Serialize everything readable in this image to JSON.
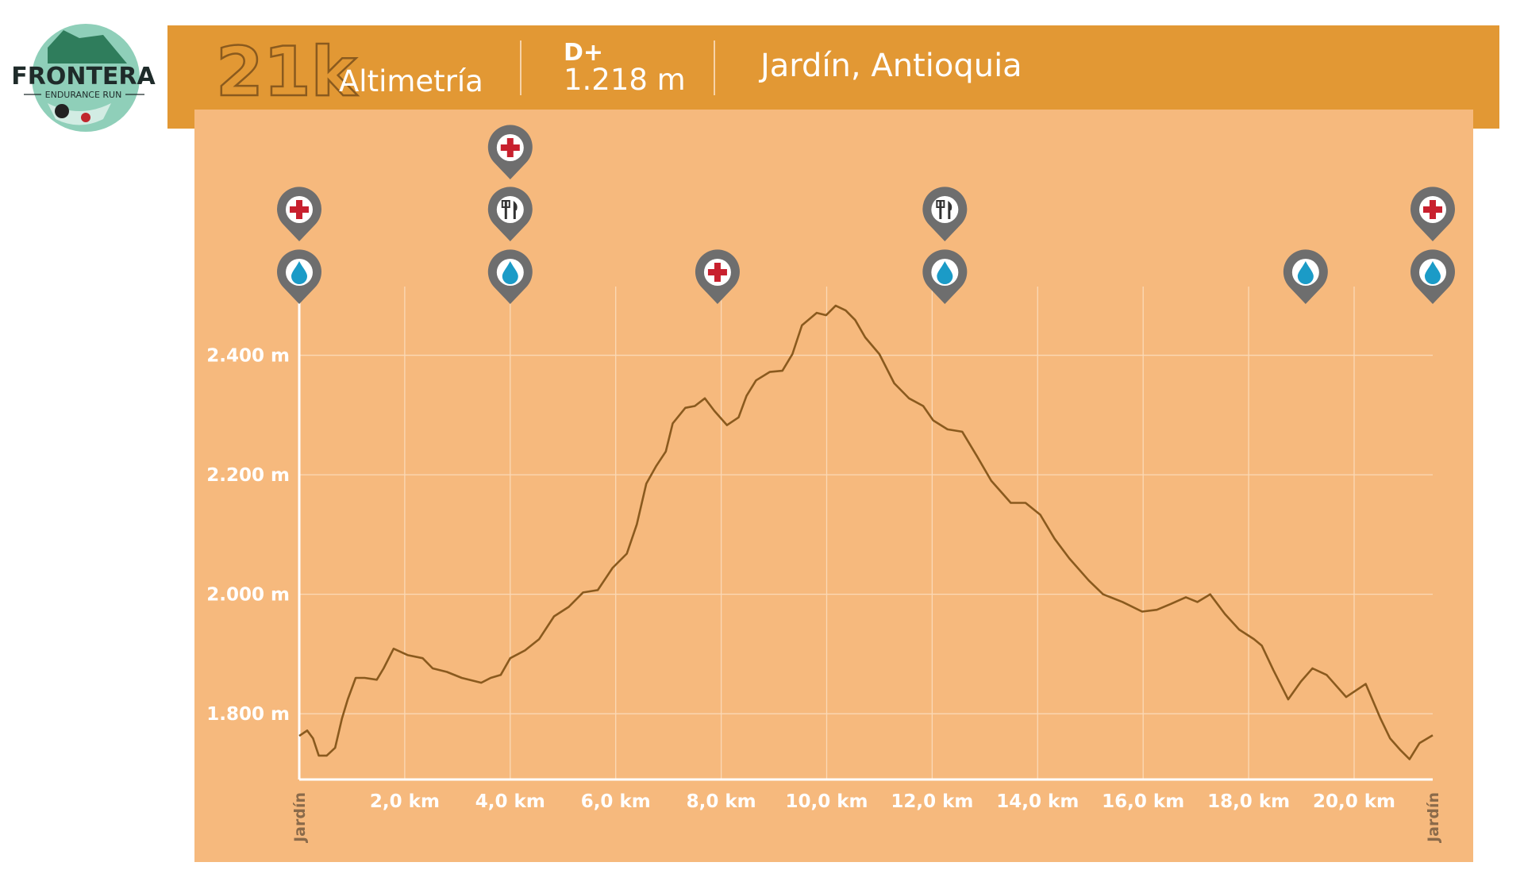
{
  "logo": {
    "title": "FRONTERA",
    "subtitle": "ENDURANCE RUN"
  },
  "header": {
    "distance": "21k",
    "label": "Altimetría",
    "gain_label": "D+",
    "gain_value": "1.218 m",
    "location": "Jardín, Antioquia"
  },
  "chart_data": {
    "type": "line",
    "x": [
      0,
      0.15,
      0.26,
      0.37,
      0.52,
      0.68,
      0.81,
      0.92,
      1.07,
      1.24,
      1.47,
      1.6,
      1.79,
      2.06,
      2.34,
      2.53,
      2.8,
      3.08,
      3.45,
      3.63,
      3.82,
      4.0,
      4.28,
      4.55,
      4.83,
      5.11,
      5.38,
      5.66,
      5.94,
      6.21,
      6.4,
      6.58,
      6.77,
      6.95,
      7.08,
      7.32,
      7.5,
      7.69,
      7.87,
      8.11,
      8.33,
      8.48,
      8.66,
      8.92,
      9.16,
      9.35,
      9.53,
      9.81,
      9.99,
      10.17,
      10.36,
      10.54,
      10.73,
      11.0,
      11.28,
      11.56,
      11.83,
      12.02,
      12.29,
      12.57,
      12.85,
      13.12,
      13.49,
      13.77,
      14.05,
      14.32,
      14.6,
      14.97,
      15.24,
      15.61,
      15.98,
      16.26,
      16.53,
      16.81,
      17.03,
      17.27,
      17.55,
      17.82,
      18.1,
      18.25,
      18.47,
      18.75,
      18.99,
      19.21,
      19.48,
      19.85,
      20.22,
      20.5,
      20.68,
      20.87,
      21.05,
      21.24,
      21.49
    ],
    "series": [
      {
        "color": "#8a5a1e",
        "values": [
          1763,
          1772,
          1759,
          1730,
          1730,
          1743,
          1792,
          1824,
          1860,
          1860,
          1857,
          1876,
          1909,
          1898,
          1893,
          1876,
          1870,
          1860,
          1852,
          1860,
          1865,
          1893,
          1906,
          1925,
          1963,
          1979,
          2003,
          2007,
          2044,
          2068,
          2117,
          2185,
          2215,
          2239,
          2286,
          2312,
          2315,
          2328,
          2307,
          2283,
          2296,
          2332,
          2358,
          2372,
          2374,
          2402,
          2450,
          2471,
          2467,
          2483,
          2475,
          2459,
          2430,
          2402,
          2353,
          2328,
          2315,
          2291,
          2276,
          2272,
          2231,
          2190,
          2153,
          2153,
          2133,
          2093,
          2060,
          2023,
          2000,
          1987,
          1971,
          1974,
          1984,
          1995,
          1987,
          2000,
          1967,
          1941,
          1925,
          1914,
          1873,
          1824,
          1854,
          1876,
          1865,
          1828,
          1850,
          1792,
          1759,
          1740,
          1724,
          1751,
          1764
        ]
      }
    ],
    "xlim": [
      0,
      21.49
    ],
    "xticks": [
      {
        "value": 0,
        "label": "Jardín"
      },
      {
        "value": 2,
        "label": "2,0 km"
      },
      {
        "value": 4,
        "label": "4,0 km"
      },
      {
        "value": 6,
        "label": "6,0 km"
      },
      {
        "value": 8,
        "label": "8,0 km"
      },
      {
        "value": 10,
        "label": "10,0 km"
      },
      {
        "value": 12,
        "label": "12,0 km"
      },
      {
        "value": 14,
        "label": "14,0 km"
      },
      {
        "value": 16,
        "label": "16,0 km"
      },
      {
        "value": 18,
        "label": "18,0 km"
      },
      {
        "value": 20,
        "label": "20,0 km"
      },
      {
        "value": 21.49,
        "label": "Jardín"
      }
    ],
    "ylim": [
      1690,
      2515
    ],
    "yticks": [
      {
        "value": 1800,
        "label": "1.800 m"
      },
      {
        "value": 2000,
        "label": "2.000 m"
      },
      {
        "value": 2200,
        "label": "2.200 m"
      },
      {
        "value": 2400,
        "label": "2.400 m"
      }
    ],
    "grid": true,
    "aid_stations": [
      {
        "x": 0,
        "services": [
          "water",
          "medical"
        ]
      },
      {
        "x": 4.0,
        "services": [
          "water",
          "food",
          "medical"
        ]
      },
      {
        "x": 7.93,
        "services": [
          "medical"
        ]
      },
      {
        "x": 12.24,
        "services": [
          "water",
          "food"
        ]
      },
      {
        "x": 19.08,
        "services": [
          "water"
        ]
      },
      {
        "x": 21.49,
        "services": [
          "water",
          "medical"
        ]
      }
    ]
  }
}
